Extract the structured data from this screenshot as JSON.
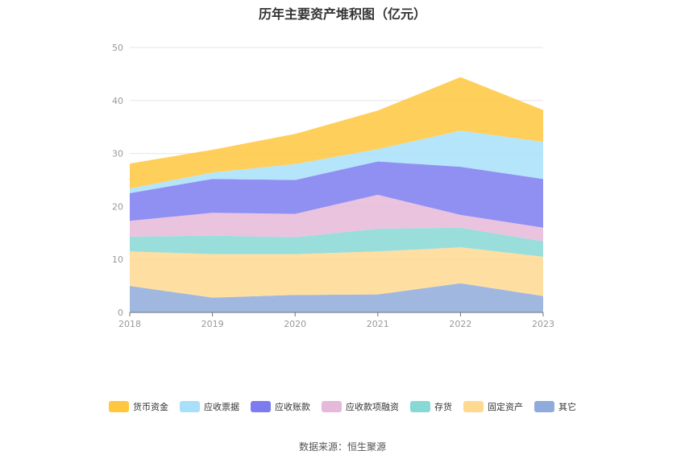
{
  "chart_data": {
    "type": "area",
    "stacked": true,
    "title": "历年主要资产堆积图（亿元）",
    "x": [
      "2018",
      "2019",
      "2020",
      "2021",
      "2022",
      "2023"
    ],
    "ylim": [
      0,
      50
    ],
    "yticks": [
      "0",
      "10",
      "20",
      "30",
      "40",
      "50"
    ],
    "grid": true,
    "legend_position": "bottom",
    "series": [
      {
        "name": "其它",
        "color": "#8fabdb",
        "values": [
          5.0,
          2.8,
          3.3,
          3.4,
          5.5,
          3.1
        ]
      },
      {
        "name": "固定资产",
        "color": "#ffd990",
        "values": [
          6.5,
          8.2,
          7.7,
          8.1,
          6.8,
          7.4
        ]
      },
      {
        "name": "存货",
        "color": "#88d8d5",
        "values": [
          2.8,
          3.5,
          3.2,
          4.3,
          3.7,
          2.9
        ]
      },
      {
        "name": "应收款项融资",
        "color": "#e6b8d9",
        "values": [
          3.0,
          4.3,
          4.4,
          6.4,
          2.4,
          2.6
        ]
      },
      {
        "name": "应收账款",
        "color": "#7c7cf0",
        "values": [
          5.2,
          6.4,
          6.4,
          6.3,
          9.1,
          9.2
        ]
      },
      {
        "name": "应收票据",
        "color": "#a8e0fa",
        "values": [
          0.9,
          1.2,
          3.0,
          2.3,
          6.8,
          7.0
        ]
      },
      {
        "name": "货币资金",
        "color": "#ffc740",
        "values": [
          4.7,
          4.3,
          5.7,
          7.3,
          10.1,
          6.0
        ]
      }
    ],
    "legend": [
      "货币资金",
      "应收票据",
      "应收账款",
      "应收款项融资",
      "存货",
      "固定资产",
      "其它"
    ]
  },
  "source": "数据来源：恒生聚源"
}
